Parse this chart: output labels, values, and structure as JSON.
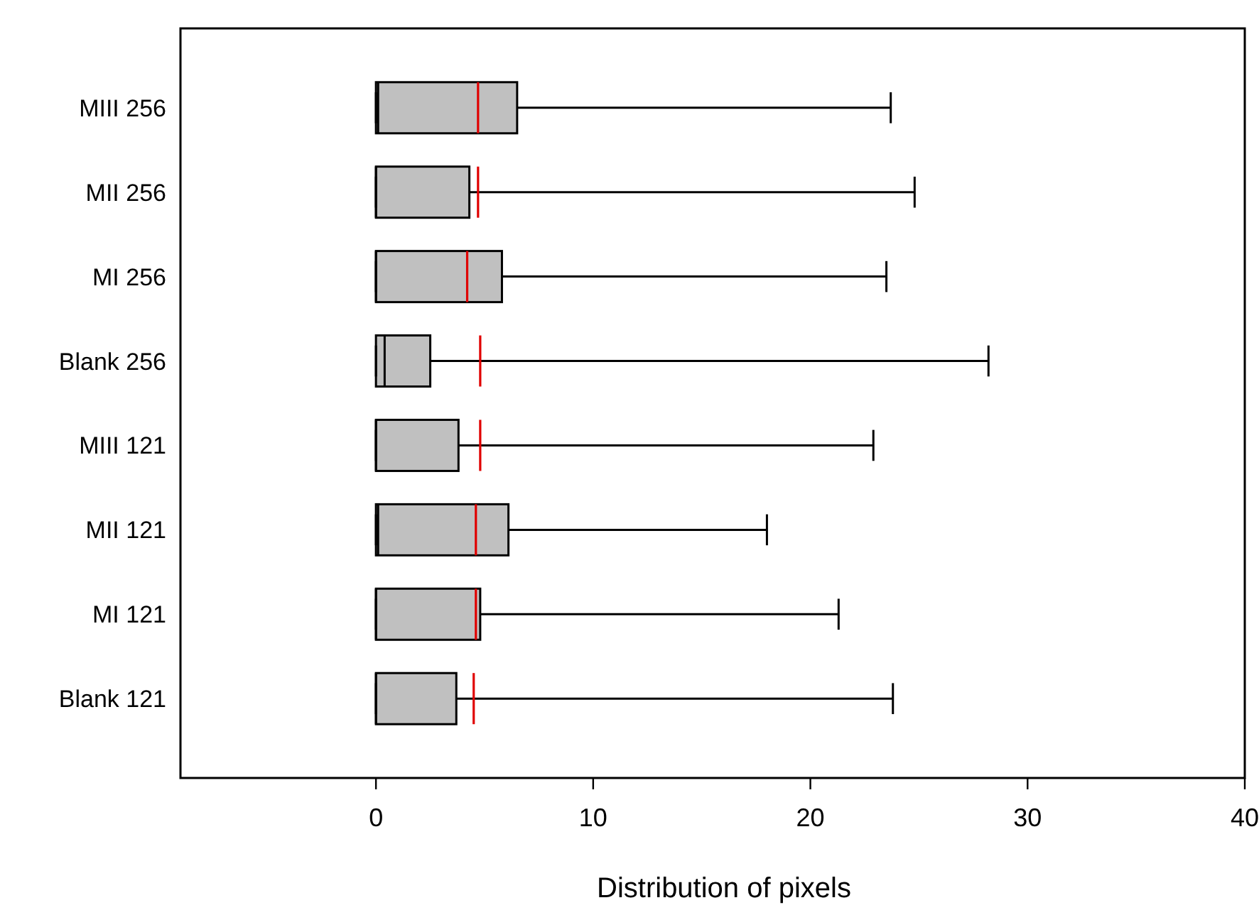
{
  "chart_data": {
    "type": "box",
    "orientation": "horizontal",
    "xlabel": "Distribution of pixels",
    "categories": [
      "MIII 256",
      "MII 256",
      "MI 256",
      "Blank 256",
      "MIII 121",
      "MII 121",
      "MI 121",
      "Blank 121"
    ],
    "xlim": [
      -9,
      40
    ],
    "xticks": [
      0,
      10,
      20,
      30,
      40
    ],
    "grid": false,
    "series": [
      {
        "color": "#c0c0c0",
        "boxes": [
          {
            "low": 0,
            "q1": 0,
            "median": 0.1,
            "q3": 6.5,
            "high": 23.7,
            "mean": 4.7
          },
          {
            "low": 0,
            "q1": 0,
            "median": 0,
            "q3": 4.3,
            "high": 24.8,
            "mean": 4.7
          },
          {
            "low": 0,
            "q1": 0,
            "median": 0,
            "q3": 5.8,
            "high": 23.5,
            "mean": 4.2
          },
          {
            "low": 0,
            "q1": 0,
            "median": 0.4,
            "q3": 2.5,
            "high": 28.2,
            "mean": 4.8
          },
          {
            "low": 0,
            "q1": 0,
            "median": 0,
            "q3": 3.8,
            "high": 22.9,
            "mean": 4.8
          },
          {
            "low": 0,
            "q1": 0,
            "median": 0.1,
            "q3": 6.1,
            "high": 18.0,
            "mean": 4.6
          },
          {
            "low": 0,
            "q1": 0,
            "median": 0,
            "q3": 4.8,
            "high": 21.3,
            "mean": 4.6
          },
          {
            "low": 0,
            "q1": 0,
            "median": 0,
            "q3": 3.7,
            "high": 23.8,
            "mean": 4.5
          }
        ]
      }
    ]
  }
}
